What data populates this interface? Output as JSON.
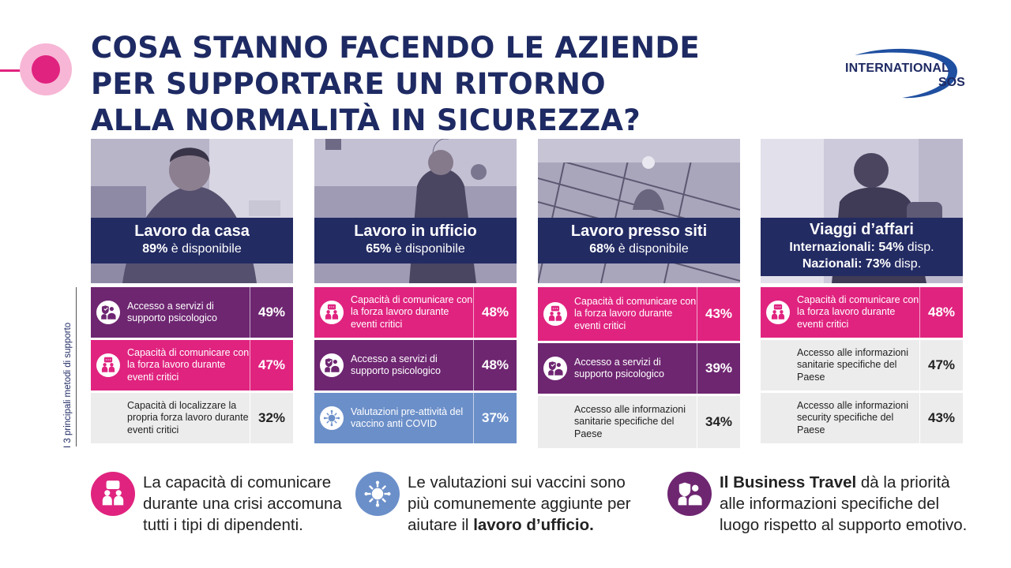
{
  "title": {
    "line1": "COSA STANNO FACENDO LE AZIENDE",
    "line2": "PER SUPPORTARE UN RITORNO",
    "line3": "ALLA NORMALITÀ IN SICUREZZA?"
  },
  "logo": {
    "line1": "INTERNATIONAL",
    "line2": "SOS"
  },
  "side_label": "I 3 principali metodi di supporto",
  "colors": {
    "navy": "#232b63",
    "pink": "#e0237f",
    "purple": "#6e2671",
    "blue": "#6b8fc9",
    "grey": "#ececec"
  },
  "columns": [
    {
      "title": "Lavoro da casa",
      "stat_value": "89%",
      "stat_text": " è disponibile",
      "rows": [
        {
          "icon": "psychological-support-icon",
          "text": "Accesso a servizi di supporto psicologico",
          "pct": "49%",
          "style": "purple"
        },
        {
          "icon": "communication-icon",
          "text": "Capacità di comunicare con la forza lavoro durante eventi critici",
          "pct": "47%",
          "style": "pink"
        },
        {
          "icon": "",
          "text": "Capacità di localizzare la propria forza lavoro durante eventi critici",
          "pct": "32%",
          "style": "grey"
        }
      ]
    },
    {
      "title": "Lavoro in ufficio",
      "stat_value": "65%",
      "stat_text": " è disponibile",
      "rows": [
        {
          "icon": "communication-icon",
          "text": "Capacità di comunicare con la forza lavoro durante eventi critici",
          "pct": "48%",
          "style": "pink"
        },
        {
          "icon": "psychological-support-icon",
          "text": "Accesso a servizi di supporto psicologico",
          "pct": "48%",
          "style": "purple"
        },
        {
          "icon": "virus-icon",
          "text": "Valutazioni pre-attività del vaccino anti COVID",
          "pct": "37%",
          "style": "blue"
        }
      ]
    },
    {
      "title": "Lavoro presso siti",
      "stat_value": "68%",
      "stat_text": " è disponibile",
      "rows": [
        {
          "icon": "communication-icon",
          "text": "Capacità di comunicare con la forza lavoro durante eventi critici",
          "pct": "43%",
          "style": "pink"
        },
        {
          "icon": "psychological-support-icon",
          "text": "Accesso a servizi di supporto psicologico",
          "pct": "39%",
          "style": "purple"
        },
        {
          "icon": "",
          "text": "Accesso alle informazioni sanitarie specifiche del Paese",
          "pct": "34%",
          "style": "grey"
        }
      ]
    },
    {
      "title": "Viaggi d’affari",
      "stat_line1_label": "Internazionali: ",
      "stat_line1_value": "54%",
      "stat_line1_suffix": " disp.",
      "stat_line2_label": "Nazionali: ",
      "stat_line2_value": "73%",
      "stat_line2_suffix": " disp.",
      "rows": [
        {
          "icon": "communication-icon",
          "text": "Capacità di comunicare con la forza lavoro durante eventi critici",
          "pct": "48%",
          "style": "pink"
        },
        {
          "icon": "",
          "text": "Accesso alle informazioni sanitarie specifiche del Paese",
          "pct": "47%",
          "style": "grey"
        },
        {
          "icon": "",
          "text": "Accesso alle informazioni security specifiche del Paese",
          "pct": "43%",
          "style": "grey"
        }
      ]
    }
  ],
  "takeaways": [
    {
      "icon": "communication-icon",
      "text": "La capacità di comunicare durante una crisi accomuna tutti i tipi di dipendenti."
    },
    {
      "icon": "virus-icon",
      "text_before": "Le valutazioni sui vaccini sono più comunemente aggiunte per aiutare il ",
      "text_bold": "lavoro d’ufficio."
    },
    {
      "icon": "psychological-support-icon",
      "text_bold": "Il Business Travel",
      "text_after": " dà la priorità alle informazioni specifiche del luogo rispetto al supporto emotivo."
    }
  ]
}
